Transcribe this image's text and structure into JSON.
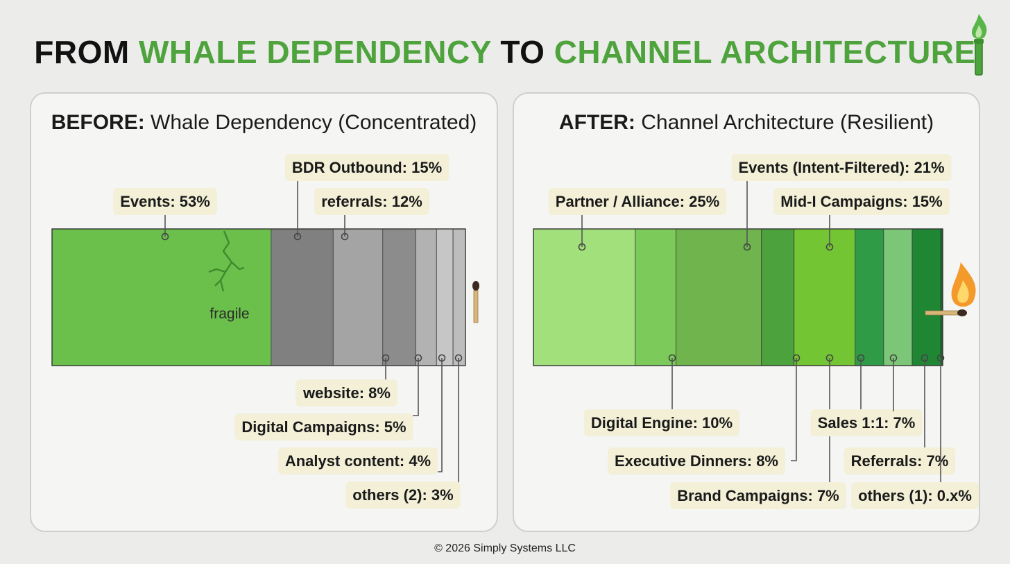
{
  "title": {
    "part1": "FROM ",
    "part2": "WHALE DEPENDENCY",
    "part3": " TO ",
    "part4": "CHANNEL ARCHITECTURE"
  },
  "footer": "© 2026 Simply Systems LLC",
  "colors": {
    "accent": "#4ea33d",
    "dark_text": "#111111",
    "label_bg": "#f3f0d7"
  },
  "chart_data": [
    {
      "type": "bar",
      "stacked": "horizontal-100",
      "title_bold": "BEFORE:",
      "title_rest": " Whale Dependency (Concentrated)",
      "annotation": "fragile",
      "segments": [
        {
          "label": "Events: 53%",
          "value": 53,
          "color": "#6ac04b"
        },
        {
          "label": "BDR Outbound: 15%",
          "value": 15,
          "color": "#808080"
        },
        {
          "label": "referrals: 12%",
          "value": 12,
          "color": "#a4a4a4"
        },
        {
          "label": "website: 8%",
          "value": 8,
          "color": "#8c8c8c"
        },
        {
          "label": "Digital Campaigns: 5%",
          "value": 5,
          "color": "#b2b2b2"
        },
        {
          "label": "Analyst content: 4%",
          "value": 4,
          "color": "#c6c6c6"
        },
        {
          "label": "others (2): 3%",
          "value": 3,
          "color": "#bdbdbd"
        }
      ]
    },
    {
      "type": "bar",
      "stacked": "horizontal-100",
      "title_bold": "AFTER:",
      "title_rest": " Channel Architecture (Resilient)",
      "segments": [
        {
          "label": "Partner / Alliance: 25%",
          "value": 25,
          "color": "#a1e07a"
        },
        {
          "label": "Digital Engine: 10%",
          "value": 10,
          "color": "#7ccb5a"
        },
        {
          "label": "Events (Intent-Filtered): 21%",
          "value": 21,
          "color": "#70b44e"
        },
        {
          "label": "Executive Dinners: 8%",
          "value": 8,
          "color": "#4ca23c"
        },
        {
          "label": "Mid-I Campaigns: 15%",
          "value": 15,
          "color": "#74c534"
        },
        {
          "label": "Brand Campaigns: 7%",
          "value": 7,
          "color": "#2f9b47"
        },
        {
          "label": "Sales 1:1: 7%",
          "value": 7,
          "color": "#7bc777"
        },
        {
          "label": "Referrals: 7%",
          "value": 7,
          "color": "#1f8634"
        },
        {
          "label": "others (1): 0.x%",
          "value": 0.5,
          "color": "#146b27"
        }
      ]
    }
  ]
}
